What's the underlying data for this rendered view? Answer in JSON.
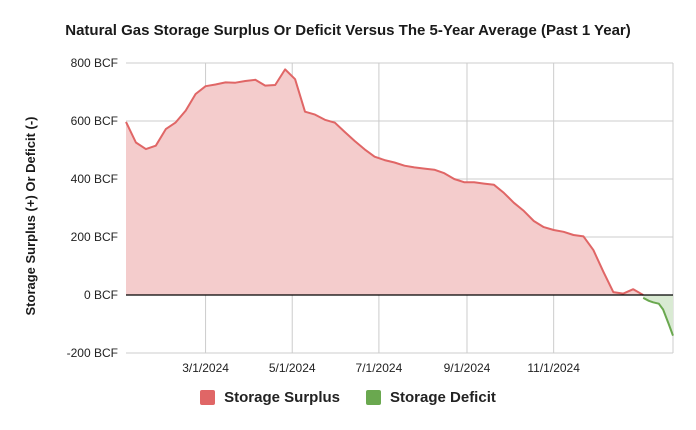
{
  "chart_data": {
    "type": "area",
    "title": "Natural Gas Storage Surplus Or Deficit Versus The 5-Year Average (Past 1 Year)",
    "xlabel": "",
    "ylabel": "Storage Surplus (+) Or Deficit (-)",
    "yticks": [
      "800 BCF",
      "600 BCF",
      "400 BCF",
      "200 BCF",
      "0 BCF",
      "-200 BCF"
    ],
    "ylim": [
      -200,
      800
    ],
    "xticks": [
      "3/1/2024",
      "5/1/2024",
      "7/1/2024",
      "9/1/2024",
      "11/1/2024"
    ],
    "xlim": [
      "2024-01-05",
      "2025-01-24"
    ],
    "grid": true,
    "legend_position": "bottom",
    "colors": {
      "surplus_line": "#e06666",
      "surplus_fill": "#f4cccc",
      "deficit_line": "#6aa84f",
      "deficit_fill": "#d9ead3",
      "grid": "#cccccc",
      "zero_line": "#000000"
    },
    "series": [
      {
        "name": "Storage Surplus",
        "points": [
          [
            "2024-01-05",
            597
          ],
          [
            "2024-01-12",
            526
          ],
          [
            "2024-01-19",
            503
          ],
          [
            "2024-01-26",
            515
          ],
          [
            "2024-02-02",
            572
          ],
          [
            "2024-02-09",
            595
          ],
          [
            "2024-02-16",
            636
          ],
          [
            "2024-02-23",
            693
          ],
          [
            "2024-03-01",
            720
          ],
          [
            "2024-03-08",
            726
          ],
          [
            "2024-03-15",
            733
          ],
          [
            "2024-03-22",
            732
          ],
          [
            "2024-03-29",
            738
          ],
          [
            "2024-04-05",
            742
          ],
          [
            "2024-04-12",
            722
          ],
          [
            "2024-04-19",
            724
          ],
          [
            "2024-04-26",
            778
          ],
          [
            "2024-05-03",
            744
          ],
          [
            "2024-05-10",
            632
          ],
          [
            "2024-05-17",
            622
          ],
          [
            "2024-05-24",
            604
          ],
          [
            "2024-05-31",
            594
          ],
          [
            "2024-06-07",
            562
          ],
          [
            "2024-06-14",
            531
          ],
          [
            "2024-06-21",
            502
          ],
          [
            "2024-06-28",
            477
          ],
          [
            "2024-07-05",
            465
          ],
          [
            "2024-07-12",
            457
          ],
          [
            "2024-07-19",
            446
          ],
          [
            "2024-07-26",
            440
          ],
          [
            "2024-08-02",
            436
          ],
          [
            "2024-08-09",
            432
          ],
          [
            "2024-08-16",
            420
          ],
          [
            "2024-08-23",
            400
          ],
          [
            "2024-08-30",
            389
          ],
          [
            "2024-09-06",
            389
          ],
          [
            "2024-09-13",
            384
          ],
          [
            "2024-09-20",
            380
          ],
          [
            "2024-09-27",
            352
          ],
          [
            "2024-10-04",
            318
          ],
          [
            "2024-10-11",
            290
          ],
          [
            "2024-10-18",
            255
          ],
          [
            "2024-10-25",
            234
          ],
          [
            "2024-11-01",
            224
          ],
          [
            "2024-11-08",
            218
          ],
          [
            "2024-11-15",
            207
          ],
          [
            "2024-11-22",
            202
          ],
          [
            "2024-11-29",
            155
          ],
          [
            "2024-12-06",
            80
          ],
          [
            "2024-12-13",
            10
          ],
          [
            "2024-12-20",
            5
          ],
          [
            "2024-12-27",
            20
          ],
          [
            "2025-01-03",
            0
          ]
        ]
      },
      {
        "name": "Storage Deficit",
        "points": [
          [
            "2025-01-03",
            -10
          ],
          [
            "2025-01-07",
            -20
          ],
          [
            "2025-01-10",
            -25
          ],
          [
            "2025-01-14",
            -30
          ],
          [
            "2025-01-17",
            -50
          ],
          [
            "2025-01-21",
            -100
          ],
          [
            "2025-01-24",
            -140
          ]
        ]
      }
    ]
  }
}
